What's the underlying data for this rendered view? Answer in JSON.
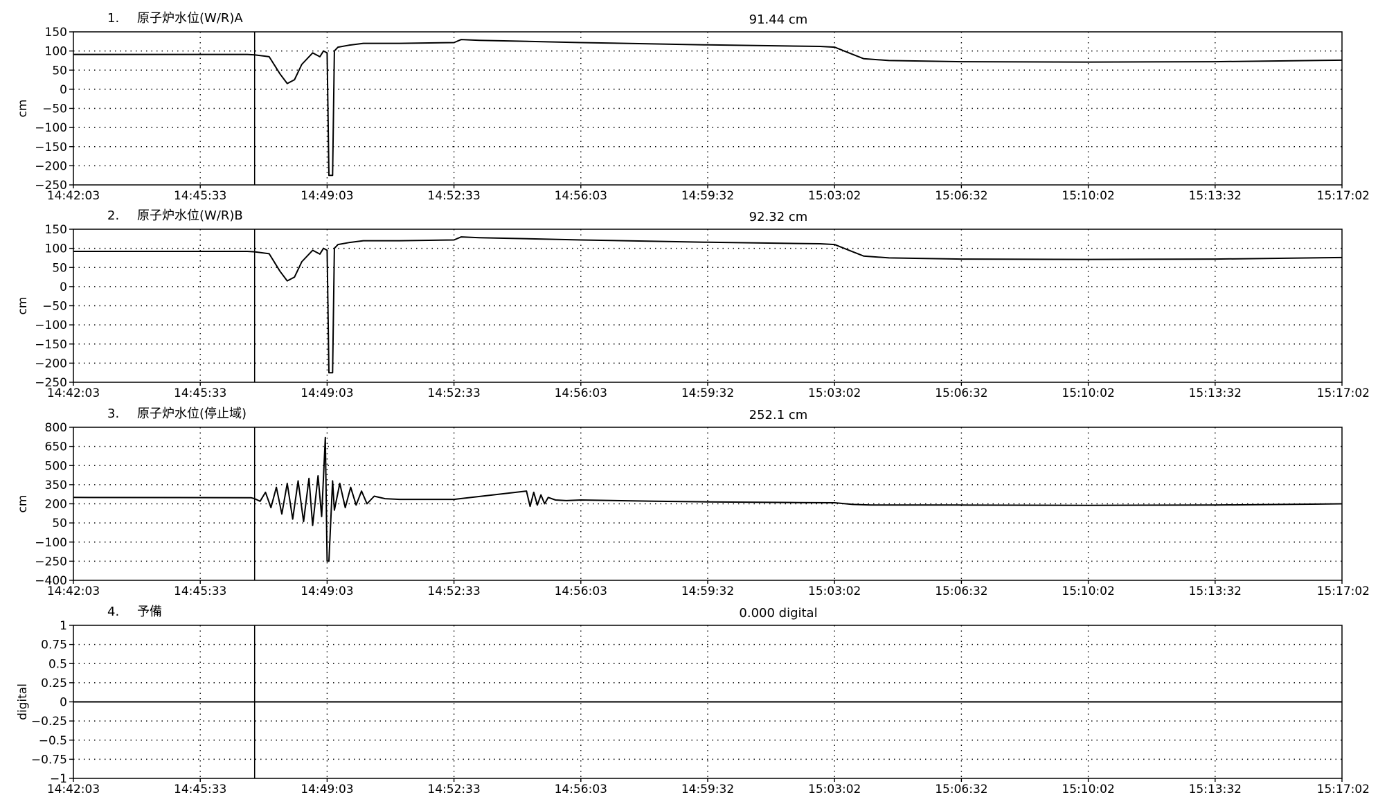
{
  "chart_data": [
    {
      "type": "line",
      "index": "1.",
      "title": "原子炉水位(W/R)A",
      "current_value": "91.44 cm",
      "ylabel": "cm",
      "ylim": [
        -250,
        150
      ],
      "yticks": [
        150,
        100,
        50,
        0,
        -50,
        -100,
        -150,
        -200,
        -250
      ],
      "ytick_labels": [
        "150",
        "100",
        "50",
        "0",
        "−50",
        "−100",
        "−150",
        "−200",
        "−250"
      ],
      "x_tick_labels": [
        "14:42:03",
        "14:45:33",
        "14:49:03",
        "14:52:33",
        "14:56:03",
        "14:59:32",
        "15:03:02",
        "15:06:32",
        "15:10:02",
        "15:13:32",
        "15:17:02"
      ],
      "x_minutes": [
        0,
        3.5,
        7,
        10.5,
        14,
        17.5,
        21,
        24.5,
        28,
        31.5,
        35
      ],
      "event_marker_minute": 5.0,
      "grid": true,
      "series": [
        {
          "color": "#000000",
          "x": [
            0,
            4.8,
            5.0,
            5.4,
            5.7,
            5.9,
            6.1,
            6.3,
            6.6,
            6.8,
            6.9,
            7.0,
            7.05,
            7.15,
            7.2,
            7.3,
            7.6,
            8.0,
            9.0,
            10.5,
            10.7,
            11.2,
            14.0,
            17.5,
            20.6,
            21.0,
            21.4,
            21.8,
            22.5,
            24.5,
            28.0,
            31.5,
            35.0
          ],
          "y": [
            91,
            91,
            90,
            85,
            40,
            15,
            25,
            65,
            95,
            85,
            100,
            95,
            -225,
            -225,
            100,
            110,
            115,
            120,
            120,
            122,
            130,
            128,
            122,
            116,
            112,
            110,
            95,
            80,
            75,
            72,
            71,
            72,
            76
          ]
        }
      ]
    },
    {
      "type": "line",
      "index": "2.",
      "title": "原子炉水位(W/R)B",
      "current_value": "92.32 cm",
      "ylabel": "cm",
      "ylim": [
        -250,
        150
      ],
      "yticks": [
        150,
        100,
        50,
        0,
        -50,
        -100,
        -150,
        -200,
        -250
      ],
      "ytick_labels": [
        "150",
        "100",
        "50",
        "0",
        "−50",
        "−100",
        "−150",
        "−200",
        "−250"
      ],
      "x_tick_labels": [
        "14:42:03",
        "14:45:33",
        "14:49:03",
        "14:52:33",
        "14:56:03",
        "14:59:32",
        "15:03:02",
        "15:06:32",
        "15:10:02",
        "15:13:32",
        "15:17:02"
      ],
      "x_minutes": [
        0,
        3.5,
        7,
        10.5,
        14,
        17.5,
        21,
        24.5,
        28,
        31.5,
        35
      ],
      "event_marker_minute": 5.0,
      "grid": true,
      "series": [
        {
          "color": "#000000",
          "x": [
            0,
            4.8,
            5.0,
            5.4,
            5.7,
            5.9,
            6.1,
            6.3,
            6.6,
            6.8,
            6.9,
            7.0,
            7.05,
            7.15,
            7.2,
            7.3,
            7.6,
            8.0,
            9.0,
            10.5,
            10.7,
            11.2,
            14.0,
            17.5,
            20.6,
            21.0,
            21.4,
            21.8,
            22.5,
            24.5,
            28.0,
            31.5,
            35.0
          ],
          "y": [
            92,
            92,
            91,
            86,
            40,
            15,
            25,
            65,
            95,
            85,
            100,
            95,
            -225,
            -225,
            100,
            110,
            115,
            120,
            120,
            122,
            130,
            128,
            122,
            116,
            112,
            110,
            95,
            80,
            75,
            72,
            71,
            72,
            76
          ]
        }
      ]
    },
    {
      "type": "line",
      "index": "3.",
      "title": "原子炉水位(停止域)",
      "current_value": "252.1 cm",
      "ylabel": "cm",
      "ylim": [
        -400,
        800
      ],
      "yticks": [
        800,
        650,
        500,
        350,
        200,
        50,
        -100,
        -250,
        -400
      ],
      "ytick_labels": [
        "800",
        "650",
        "500",
        "350",
        "200",
        "50",
        "−100",
        "−250",
        "−400"
      ],
      "x_tick_labels": [
        "14:42:03",
        "14:45:33",
        "14:49:03",
        "14:52:33",
        "14:56:03",
        "14:59:32",
        "15:03:02",
        "15:06:32",
        "15:10:02",
        "15:13:32",
        "15:17:02"
      ],
      "x_minutes": [
        0,
        3.5,
        7,
        10.5,
        14,
        17.5,
        21,
        24.5,
        28,
        31.5,
        35
      ],
      "event_marker_minute": 5.0,
      "grid": true,
      "series": [
        {
          "color": "#000000",
          "x": [
            0,
            4.9,
            5.0,
            5.15,
            5.3,
            5.45,
            5.6,
            5.75,
            5.9,
            6.05,
            6.2,
            6.35,
            6.5,
            6.6,
            6.75,
            6.85,
            6.95,
            7.0,
            7.05,
            7.15,
            7.2,
            7.35,
            7.5,
            7.65,
            7.8,
            7.95,
            8.1,
            8.3,
            8.6,
            9.0,
            10.5,
            12.5,
            12.6,
            12.7,
            12.8,
            12.9,
            13.0,
            13.1,
            13.3,
            13.6,
            14.0,
            16.0,
            17.5,
            20.0,
            21.0,
            21.5,
            22.0,
            24.5,
            28.0,
            31.5,
            35.0
          ],
          "y": [
            250,
            248,
            240,
            220,
            290,
            170,
            330,
            120,
            360,
            80,
            380,
            60,
            400,
            30,
            420,
            100,
            720,
            -250,
            -250,
            380,
            150,
            360,
            170,
            330,
            190,
            300,
            200,
            260,
            240,
            235,
            235,
            300,
            180,
            290,
            190,
            270,
            200,
            250,
            230,
            225,
            230,
            220,
            215,
            210,
            208,
            195,
            190,
            190,
            188,
            190,
            200
          ]
        }
      ]
    },
    {
      "type": "line",
      "index": "4.",
      "title": "予備",
      "current_value": "0.000 digital",
      "ylabel": "digital",
      "ylim": [
        -1,
        1
      ],
      "yticks": [
        1,
        0.75,
        0.5,
        0.25,
        0,
        -0.25,
        -0.5,
        -0.75,
        -1
      ],
      "ytick_labels": [
        "1",
        "0.75",
        "0.5",
        "0.25",
        "0",
        "−0.25",
        "−0.5",
        "−0.75",
        "−1"
      ],
      "x_tick_labels": [
        "14:42:03",
        "14:45:33",
        "14:49:03",
        "14:52:33",
        "14:56:03",
        "14:59:32",
        "15:03:02",
        "15:06:32",
        "15:10:02",
        "15:13:32",
        "15:17:02"
      ],
      "x_minutes": [
        0,
        3.5,
        7,
        10.5,
        14,
        17.5,
        21,
        24.5,
        28,
        31.5,
        35
      ],
      "event_marker_minute": 5.0,
      "grid": true,
      "series": [
        {
          "color": "#000000",
          "x": [
            0,
            35
          ],
          "y": [
            0,
            0
          ]
        }
      ]
    }
  ]
}
